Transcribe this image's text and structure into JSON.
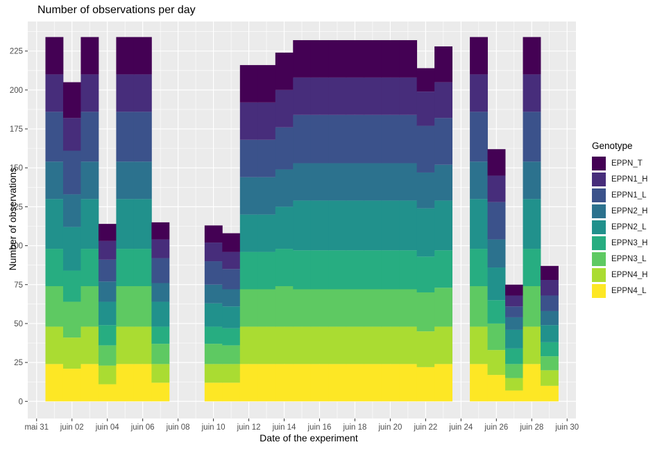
{
  "chart_data": {
    "type": "bar",
    "stacked": true,
    "title": "Number of observations per day",
    "xlabel": "Date of the experiment",
    "ylabel": "Number of observations",
    "ylim": [
      -11,
      244
    ],
    "yticks": [
      0,
      25,
      50,
      75,
      100,
      125,
      150,
      175,
      200,
      225
    ],
    "xlim": [
      -0.5,
      30.5
    ],
    "xticks": [
      {
        "pos": 0,
        "label": "mai 31"
      },
      {
        "pos": 2,
        "label": "juin 02"
      },
      {
        "pos": 4,
        "label": "juin 04"
      },
      {
        "pos": 6,
        "label": "juin 06"
      },
      {
        "pos": 8,
        "label": "juin 08"
      },
      {
        "pos": 10,
        "label": "juin 10"
      },
      {
        "pos": 12,
        "label": "juin 12"
      },
      {
        "pos": 14,
        "label": "juin 14"
      },
      {
        "pos": 16,
        "label": "juin 16"
      },
      {
        "pos": 18,
        "label": "juin 18"
      },
      {
        "pos": 20,
        "label": "juin 20"
      },
      {
        "pos": 22,
        "label": "juin 22"
      },
      {
        "pos": 24,
        "label": "juin 24"
      },
      {
        "pos": 26,
        "label": "juin 26"
      },
      {
        "pos": 28,
        "label": "juin 28"
      },
      {
        "pos": 30,
        "label": "juin 30"
      }
    ],
    "legend": {
      "title": "Genotype",
      "position": "right"
    },
    "categories": [
      "juin 01",
      "juin 02",
      "juin 03",
      "juin 04",
      "juin 05",
      "juin 06",
      "juin 07",
      "juin 08",
      "juin 09",
      "juin 10",
      "juin 11",
      "juin 12",
      "juin 13",
      "juin 14",
      "juin 15",
      "juin 16",
      "juin 17",
      "juin 18",
      "juin 19",
      "juin 20",
      "juin 21",
      "juin 22",
      "juin 23",
      "juin 24",
      "juin 25",
      "juin 26",
      "juin 27",
      "juin 28",
      "juin 29"
    ],
    "series": [
      {
        "name": "EPPN4_L",
        "color": "#FDE725",
        "values": [
          24,
          21,
          24,
          11,
          24,
          24,
          12,
          0,
          0,
          12,
          12,
          24,
          24,
          24,
          24,
          24,
          24,
          24,
          24,
          24,
          24,
          22,
          24,
          0,
          24,
          17,
          7,
          24,
          10
        ]
      },
      {
        "name": "EPPN4_H",
        "color": "#AADC32",
        "values": [
          24,
          20,
          24,
          12,
          24,
          24,
          12,
          0,
          0,
          12,
          12,
          24,
          24,
          24,
          24,
          24,
          24,
          24,
          24,
          24,
          24,
          23,
          24,
          0,
          24,
          16,
          8,
          24,
          10
        ]
      },
      {
        "name": "EPPN3_L",
        "color": "#5EC962",
        "values": [
          26,
          23,
          26,
          13,
          26,
          26,
          13,
          0,
          0,
          13,
          12,
          24,
          24,
          26,
          24,
          24,
          24,
          24,
          24,
          24,
          24,
          25,
          25,
          0,
          26,
          17,
          9,
          26,
          9
        ]
      },
      {
        "name": "EPPN3_H",
        "color": "#27AD81",
        "values": [
          24,
          20,
          24,
          13,
          24,
          24,
          11,
          0,
          0,
          11,
          11,
          24,
          24,
          24,
          25,
          25,
          25,
          25,
          25,
          25,
          25,
          23,
          24,
          0,
          24,
          15,
          10,
          24,
          9
        ]
      },
      {
        "name": "EPPN2_L",
        "color": "#21918C",
        "values": [
          32,
          28,
          32,
          15,
          32,
          32,
          16,
          0,
          0,
          15,
          14,
          24,
          24,
          27,
          32,
          32,
          32,
          32,
          32,
          32,
          32,
          31,
          32,
          0,
          32,
          21,
          12,
          32,
          11
        ]
      },
      {
        "name": "EPPN2_H",
        "color": "#2C728E",
        "values": [
          24,
          21,
          24,
          13,
          24,
          24,
          12,
          0,
          0,
          12,
          11,
          24,
          24,
          24,
          24,
          24,
          24,
          24,
          24,
          24,
          24,
          23,
          23,
          0,
          24,
          18,
          8,
          24,
          9
        ]
      },
      {
        "name": "EPPN1_L",
        "color": "#3B528B",
        "values": [
          32,
          28,
          32,
          14,
          32,
          32,
          16,
          0,
          0,
          15,
          13,
          24,
          24,
          27,
          31,
          31,
          31,
          31,
          31,
          31,
          31,
          30,
          30,
          0,
          32,
          24,
          7,
          32,
          10
        ]
      },
      {
        "name": "EPPN1_H",
        "color": "#472D7B",
        "values": [
          24,
          21,
          24,
          12,
          24,
          24,
          12,
          0,
          0,
          12,
          11,
          24,
          24,
          24,
          24,
          24,
          24,
          24,
          24,
          24,
          24,
          22,
          23,
          0,
          24,
          17,
          7,
          24,
          10
        ]
      },
      {
        "name": "EPPN_T",
        "color": "#440154",
        "values": [
          24,
          23,
          24,
          11,
          24,
          24,
          11,
          0,
          0,
          11,
          12,
          24,
          24,
          24,
          24,
          24,
          24,
          24,
          24,
          24,
          24,
          15,
          23,
          0,
          24,
          17,
          7,
          24,
          9
        ]
      }
    ]
  },
  "style": {
    "panel_bg": "#EBEBEB",
    "grid_major": "#FFFFFF",
    "tick_color": "#333333",
    "legend_order": [
      "EPPN_T",
      "EPPN1_H",
      "EPPN1_L",
      "EPPN2_H",
      "EPPN2_L",
      "EPPN3_H",
      "EPPN3_L",
      "EPPN4_H",
      "EPPN4_L"
    ]
  }
}
